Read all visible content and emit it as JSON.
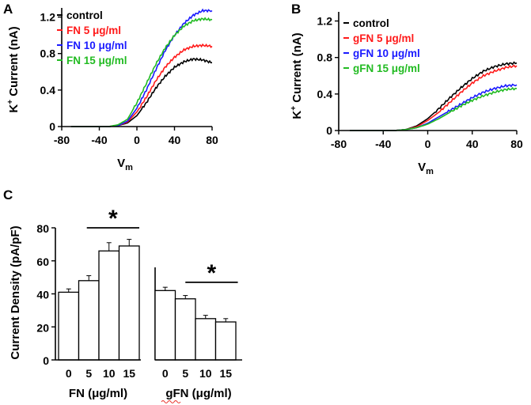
{
  "chart_data": [
    {
      "panel": "A",
      "type": "line",
      "xlabel_main": "V",
      "xlabel_sub": "m",
      "ylabel_main": "K",
      "ylabel_sup": "+",
      "ylabel_rest": " Current (nA)",
      "xlim": [
        -80,
        80
      ],
      "ylim": [
        0,
        1.3
      ],
      "x_ticks": [
        -80,
        -40,
        0,
        40,
        80
      ],
      "y_ticks": [
        0,
        0.4,
        0.8,
        1.2
      ],
      "y_tick_labels": [
        "0",
        "0.4",
        "0.8",
        "1.2"
      ],
      "legend": {
        "position": "top-left"
      },
      "series": [
        {
          "name": "control",
          "color": "#000000",
          "x": [
            -70,
            -60,
            -50,
            -40,
            -30,
            -20,
            -10,
            0,
            10,
            20,
            30,
            40,
            50,
            60,
            70,
            80
          ],
          "y": [
            0,
            0,
            0,
            0,
            0,
            0.01,
            0.04,
            0.12,
            0.26,
            0.42,
            0.55,
            0.65,
            0.71,
            0.74,
            0.73,
            0.7
          ]
        },
        {
          "name": "FN 5 μg/ml",
          "color": "#ff1a1a",
          "x": [
            -70,
            -60,
            -50,
            -40,
            -30,
            -20,
            -10,
            0,
            10,
            20,
            30,
            40,
            50,
            60,
            70,
            80
          ],
          "y": [
            0,
            0,
            0,
            0,
            0,
            0.01,
            0.05,
            0.16,
            0.32,
            0.5,
            0.65,
            0.76,
            0.84,
            0.88,
            0.89,
            0.88
          ]
        },
        {
          "name": "FN  10 μg/ml",
          "color": "#1a1aff",
          "x": [
            -70,
            -60,
            -50,
            -40,
            -30,
            -20,
            -10,
            0,
            10,
            20,
            30,
            40,
            50,
            60,
            70,
            80
          ],
          "y": [
            0,
            0,
            0,
            0,
            0,
            0.01,
            0.06,
            0.2,
            0.4,
            0.62,
            0.83,
            1.0,
            1.13,
            1.22,
            1.27,
            1.27
          ]
        },
        {
          "name": "FN 15 μg/ml",
          "color": "#22bb22",
          "x": [
            -70,
            -60,
            -50,
            -40,
            -30,
            -20,
            -10,
            0,
            10,
            20,
            30,
            40,
            50,
            60,
            70,
            80
          ],
          "y": [
            0,
            0,
            0,
            0,
            0,
            0.02,
            0.08,
            0.26,
            0.47,
            0.68,
            0.86,
            1.0,
            1.1,
            1.16,
            1.18,
            1.17
          ]
        }
      ]
    },
    {
      "panel": "B",
      "type": "line",
      "xlabel_main": "V",
      "xlabel_sub": "m",
      "ylabel_main": "K",
      "ylabel_sup": "+",
      "ylabel_rest": " Current (nA)",
      "xlim": [
        -80,
        80
      ],
      "ylim": [
        0,
        1.3
      ],
      "x_ticks": [
        -80,
        -40,
        0,
        40,
        80
      ],
      "y_ticks": [
        0,
        0.4,
        0.8,
        1.2
      ],
      "y_tick_labels": [
        "0",
        "0.4",
        "0.8",
        "1.2"
      ],
      "legend": {
        "position": "top-left"
      },
      "series": [
        {
          "name": "control",
          "color": "#000000",
          "x": [
            -70,
            -60,
            -50,
            -40,
            -30,
            -20,
            -10,
            0,
            10,
            20,
            30,
            40,
            50,
            60,
            70,
            80
          ],
          "y": [
            0,
            0,
            0,
            0,
            0,
            0.01,
            0.05,
            0.13,
            0.24,
            0.36,
            0.47,
            0.57,
            0.65,
            0.7,
            0.73,
            0.74
          ]
        },
        {
          "name": "gFN 5 μg/ml",
          "color": "#ff1a1a",
          "x": [
            -70,
            -60,
            -50,
            -40,
            -30,
            -20,
            -10,
            0,
            10,
            20,
            30,
            40,
            50,
            60,
            70,
            80
          ],
          "y": [
            0,
            0,
            0,
            0,
            0,
            0.01,
            0.04,
            0.11,
            0.2,
            0.31,
            0.42,
            0.52,
            0.6,
            0.65,
            0.69,
            0.71
          ]
        },
        {
          "name": "gFN  10 μg/ml",
          "color": "#1a1aff",
          "x": [
            -70,
            -60,
            -50,
            -40,
            -30,
            -20,
            -10,
            0,
            10,
            20,
            30,
            40,
            50,
            60,
            70,
            80
          ],
          "y": [
            0,
            0,
            0,
            0,
            0,
            0.01,
            0.03,
            0.08,
            0.15,
            0.22,
            0.29,
            0.36,
            0.42,
            0.46,
            0.49,
            0.5
          ]
        },
        {
          "name": "gFN 15 μg/ml",
          "color": "#22bb22",
          "x": [
            -70,
            -60,
            -50,
            -40,
            -30,
            -20,
            -10,
            0,
            10,
            20,
            30,
            40,
            50,
            60,
            70,
            80
          ],
          "y": [
            0,
            0,
            0,
            0,
            0,
            0.01,
            0.03,
            0.07,
            0.13,
            0.2,
            0.27,
            0.33,
            0.38,
            0.42,
            0.45,
            0.46
          ]
        }
      ]
    },
    {
      "panel": "C",
      "type": "bar",
      "ylabel": "Current Density (pA/pF)",
      "ylim": [
        0,
        80
      ],
      "y_ticks": [
        0,
        20,
        40,
        60,
        80
      ],
      "groups": [
        {
          "name": "FN (μg/ml)",
          "categories": [
            "0",
            "5",
            "10",
            "15"
          ],
          "values": [
            41,
            48,
            66,
            69
          ],
          "errors": [
            2,
            3,
            5,
            4
          ],
          "significance": "*"
        },
        {
          "name": "gFN (μg/ml)",
          "categories": [
            "0",
            "5",
            "10",
            "15"
          ],
          "values": [
            42,
            37,
            25,
            23
          ],
          "errors": [
            2,
            2,
            2,
            2
          ],
          "significance": "*"
        }
      ]
    }
  ]
}
